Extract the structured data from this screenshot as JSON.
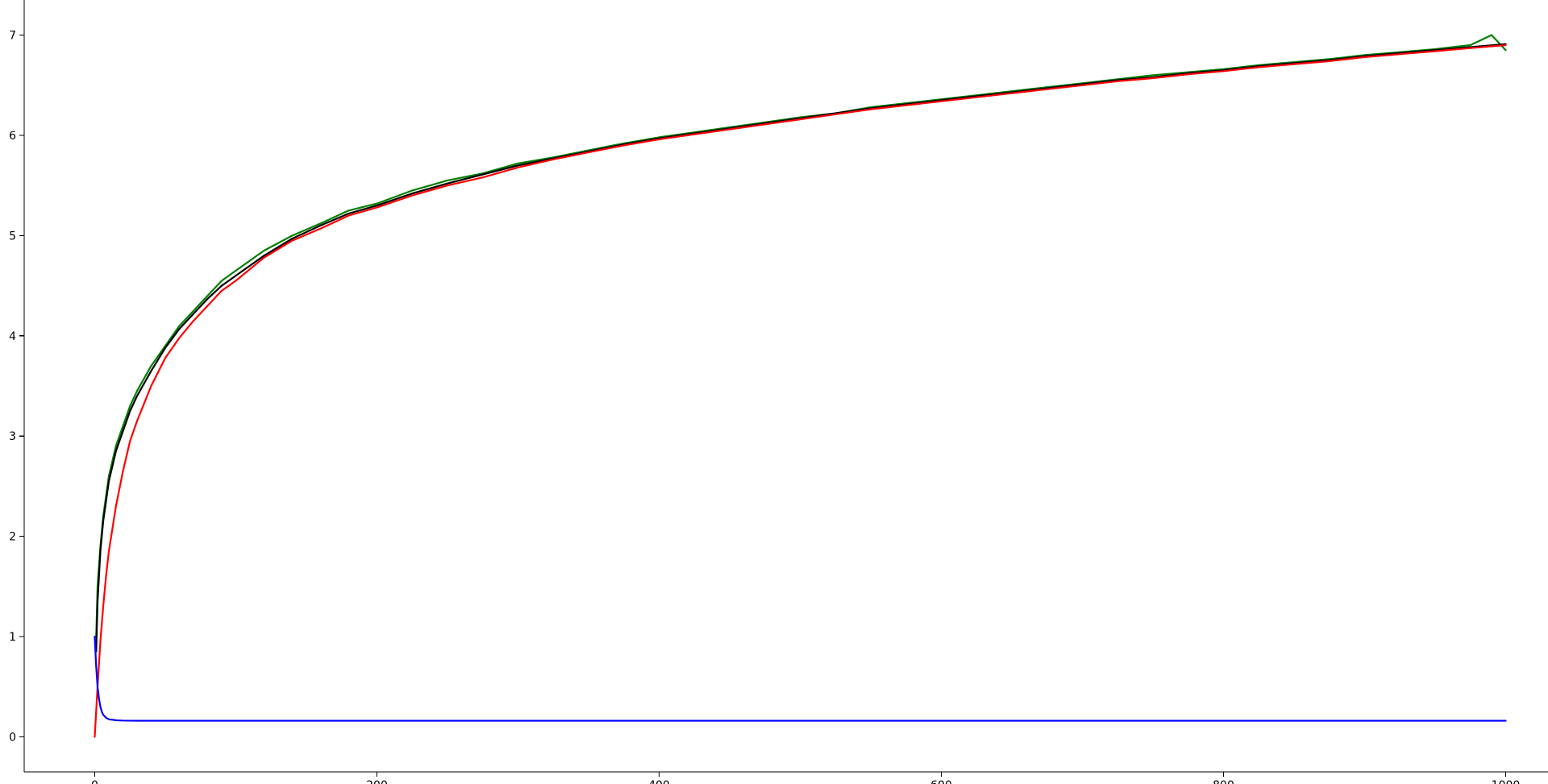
{
  "chart_data": {
    "type": "line",
    "title": "",
    "xlabel": "",
    "ylabel": "",
    "xlim": [
      -50,
      1030
    ],
    "ylim": [
      -0.35,
      7.35
    ],
    "x_ticks": [
      0,
      200,
      400,
      600,
      800,
      1000
    ],
    "x_tick_labels": [
      "0",
      "200",
      "400",
      "600",
      "800",
      "1000"
    ],
    "y_ticks": [
      0,
      1,
      2,
      3,
      4,
      5,
      6,
      7
    ],
    "y_tick_labels": [
      "0",
      "1",
      "2",
      "3",
      "4",
      "5",
      "6",
      "7"
    ],
    "grid": false,
    "legend": "none",
    "colors": {
      "green": "#008000",
      "black": "#000000",
      "red": "#ff0000",
      "blue": "#0000ff"
    },
    "series": [
      {
        "color": "green",
        "x": [
          1,
          2,
          4,
          6,
          8,
          10,
          15,
          20,
          25,
          30,
          40,
          50,
          60,
          70,
          80,
          90,
          100,
          120,
          140,
          160,
          180,
          200,
          225,
          250,
          275,
          300,
          325,
          350,
          375,
          400,
          425,
          450,
          475,
          500,
          525,
          550,
          575,
          600,
          625,
          650,
          675,
          700,
          725,
          750,
          775,
          800,
          825,
          850,
          875,
          900,
          925,
          950,
          975,
          990,
          1000
        ],
        "y": [
          1.0,
          1.5,
          1.9,
          2.2,
          2.4,
          2.6,
          2.9,
          3.1,
          3.3,
          3.45,
          3.7,
          3.9,
          4.1,
          4.25,
          4.4,
          4.55,
          4.65,
          4.85,
          5.0,
          5.12,
          5.25,
          5.32,
          5.45,
          5.55,
          5.62,
          5.72,
          5.78,
          5.85,
          5.92,
          5.98,
          6.03,
          6.08,
          6.13,
          6.18,
          6.22,
          6.28,
          6.32,
          6.36,
          6.4,
          6.44,
          6.48,
          6.52,
          6.56,
          6.6,
          6.63,
          6.66,
          6.7,
          6.73,
          6.76,
          6.8,
          6.83,
          6.86,
          6.9,
          7.0,
          6.85
        ]
      },
      {
        "color": "black",
        "x": [
          1,
          2,
          4,
          6,
          8,
          10,
          15,
          20,
          25,
          30,
          40,
          50,
          60,
          70,
          80,
          90,
          100,
          120,
          140,
          160,
          180,
          200,
          225,
          250,
          275,
          300,
          325,
          350,
          375,
          400,
          425,
          450,
          475,
          500,
          525,
          550,
          575,
          600,
          625,
          650,
          675,
          700,
          725,
          750,
          775,
          800,
          825,
          850,
          875,
          900,
          925,
          950,
          975,
          1000
        ],
        "y": [
          0.85,
          1.35,
          1.85,
          2.15,
          2.35,
          2.55,
          2.85,
          3.05,
          3.25,
          3.4,
          3.65,
          3.88,
          4.07,
          4.22,
          4.37,
          4.5,
          4.6,
          4.8,
          4.97,
          5.1,
          5.22,
          5.3,
          5.42,
          5.52,
          5.61,
          5.7,
          5.77,
          5.84,
          5.91,
          5.97,
          6.02,
          6.07,
          6.12,
          6.17,
          6.22,
          6.27,
          6.31,
          6.35,
          6.39,
          6.43,
          6.47,
          6.51,
          6.55,
          6.58,
          6.62,
          6.65,
          6.69,
          6.72,
          6.75,
          6.79,
          6.82,
          6.85,
          6.88,
          6.91
        ]
      },
      {
        "color": "red",
        "x": [
          0,
          2,
          4,
          6,
          8,
          10,
          15,
          20,
          25,
          30,
          40,
          50,
          60,
          70,
          80,
          90,
          100,
          120,
          140,
          160,
          180,
          200,
          225,
          250,
          275,
          300,
          325,
          350,
          375,
          400,
          425,
          450,
          475,
          500,
          525,
          550,
          575,
          600,
          625,
          650,
          675,
          700,
          725,
          750,
          775,
          800,
          825,
          850,
          875,
          900,
          925,
          950,
          975,
          1000
        ],
        "y": [
          0.0,
          0.5,
          0.95,
          1.3,
          1.6,
          1.85,
          2.3,
          2.65,
          2.95,
          3.15,
          3.5,
          3.78,
          3.98,
          4.15,
          4.3,
          4.45,
          4.55,
          4.78,
          4.95,
          5.07,
          5.2,
          5.28,
          5.4,
          5.5,
          5.58,
          5.68,
          5.76,
          5.83,
          5.9,
          5.96,
          6.01,
          6.06,
          6.11,
          6.16,
          6.21,
          6.26,
          6.3,
          6.34,
          6.38,
          6.42,
          6.46,
          6.5,
          6.54,
          6.57,
          6.61,
          6.64,
          6.68,
          6.71,
          6.74,
          6.78,
          6.81,
          6.84,
          6.87,
          6.9
        ]
      },
      {
        "color": "blue",
        "x": [
          0,
          1,
          2,
          3,
          4,
          5,
          6,
          8,
          10,
          15,
          20,
          30,
          50,
          100,
          200,
          400,
          600,
          800,
          1000
        ],
        "y": [
          1.0,
          0.7,
          0.5,
          0.38,
          0.3,
          0.25,
          0.22,
          0.19,
          0.175,
          0.165,
          0.162,
          0.16,
          0.16,
          0.16,
          0.16,
          0.16,
          0.16,
          0.16,
          0.16
        ]
      }
    ]
  }
}
